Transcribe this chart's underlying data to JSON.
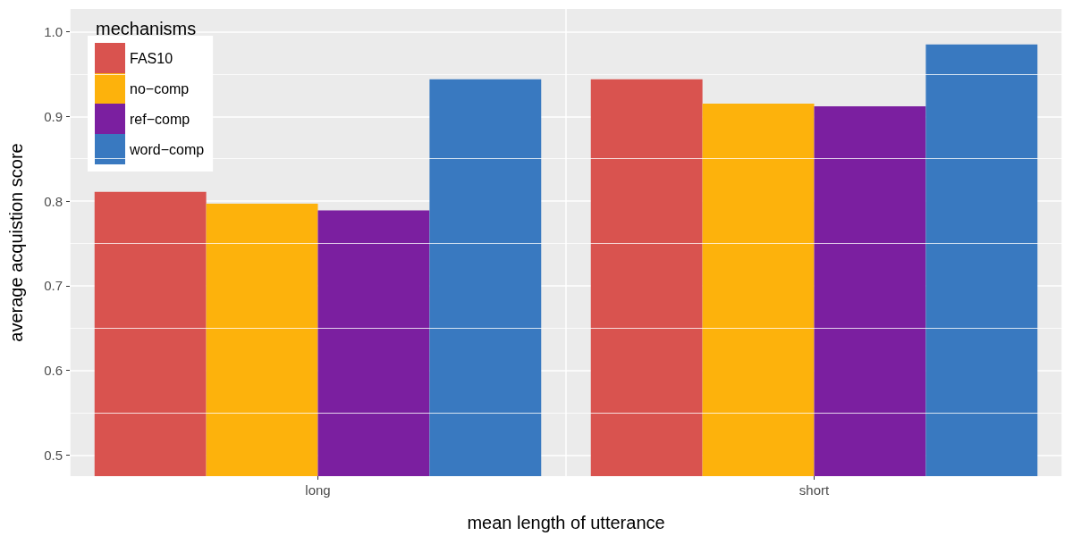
{
  "chart_data": {
    "type": "bar",
    "xlabel": "mean length of utterance",
    "ylabel": "average acquistion score",
    "legend_title": "mechanisms",
    "categories": [
      "long",
      "short"
    ],
    "series": [
      {
        "name": "FAS10",
        "color": "#d9534f",
        "values": [
          0.811,
          0.944
        ]
      },
      {
        "name": "no−comp",
        "color": "#fdb20c",
        "values": [
          0.797,
          0.915
        ]
      },
      {
        "name": "ref−comp",
        "color": "#7b1fa0",
        "values": [
          0.789,
          0.912
        ]
      },
      {
        "name": "word−comp",
        "color": "#3979c0",
        "values": [
          0.944,
          0.985
        ]
      }
    ],
    "ylim": [
      0.475,
      1.027
    ],
    "yticks": [
      0.5,
      0.6,
      0.7,
      0.8,
      0.9,
      {
        "value": 1,
        "label": "1.0"
      }
    ],
    "grid": true,
    "legend": "top left"
  }
}
